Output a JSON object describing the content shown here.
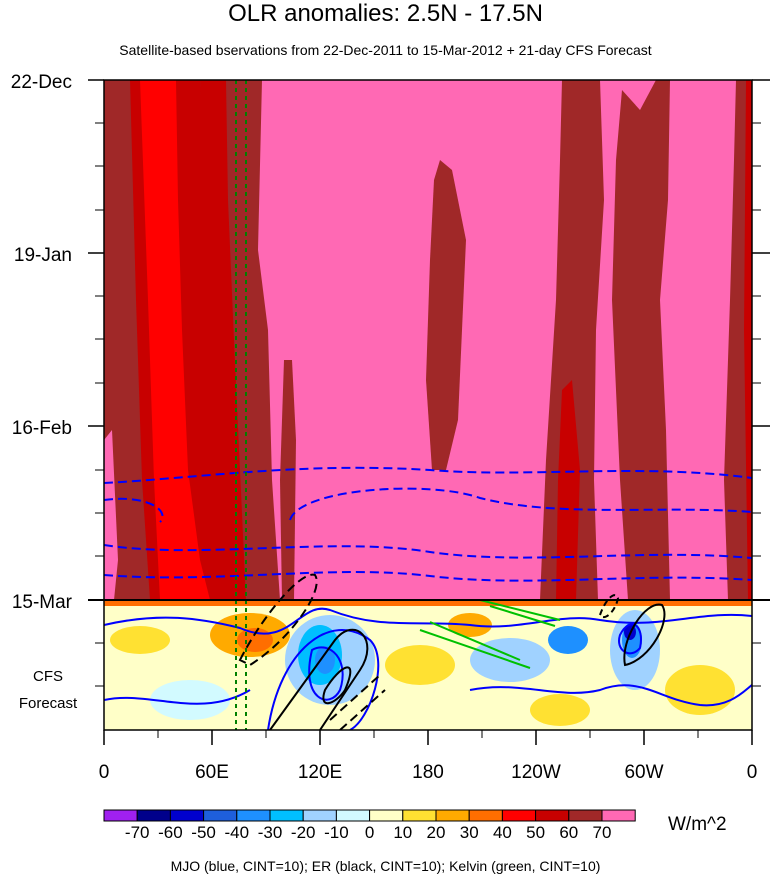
{
  "chart_data": {
    "type": "heatmap",
    "title": "OLR anomalies: 2.5N - 17.5N",
    "subtitle": "Satellite-based bservations from 22-Dec-2011 to 15-Mar-2012 + 21-day CFS Forecast",
    "y_axis": {
      "tick_labels": [
        "22-Dec",
        "19-Jan",
        "16-Feb",
        "15-Mar"
      ],
      "forecast_label_lines": [
        "CFS",
        "Forecast"
      ]
    },
    "x_axis": {
      "tick_labels": [
        "0",
        "60E",
        "120E",
        "180",
        "120W",
        "60W",
        "0"
      ],
      "range_deg_east": [
        0,
        360
      ]
    },
    "colorbar": {
      "labels": [
        "-70",
        "-60",
        "-50",
        "-40",
        "-30",
        "-20",
        "-10",
        "0",
        "10",
        "20",
        "30",
        "40",
        "50",
        "60",
        "70"
      ],
      "colors": [
        "#a020f0",
        "#00008b",
        "#0000cd",
        "#1e5fdc",
        "#1e90ff",
        "#00bfff",
        "#a0d2ff",
        "#d2faff",
        "#ffffc8",
        "#ffe132",
        "#ffaa00",
        "#ff6e00",
        "#ff0000",
        "#c80000",
        "#a02828",
        "#ff69b4"
      ],
      "units": "W/m^2"
    },
    "overlay_legend": "MJO (blue, CINT=10); ER (black, CINT=10); Kelvin (green, CINT=10)",
    "overlays": [
      {
        "name": "MJO",
        "color": "#0000ff"
      },
      {
        "name": "ER",
        "color": "#000000"
      },
      {
        "name": "Kelvin",
        "color": "#00c000"
      }
    ]
  }
}
